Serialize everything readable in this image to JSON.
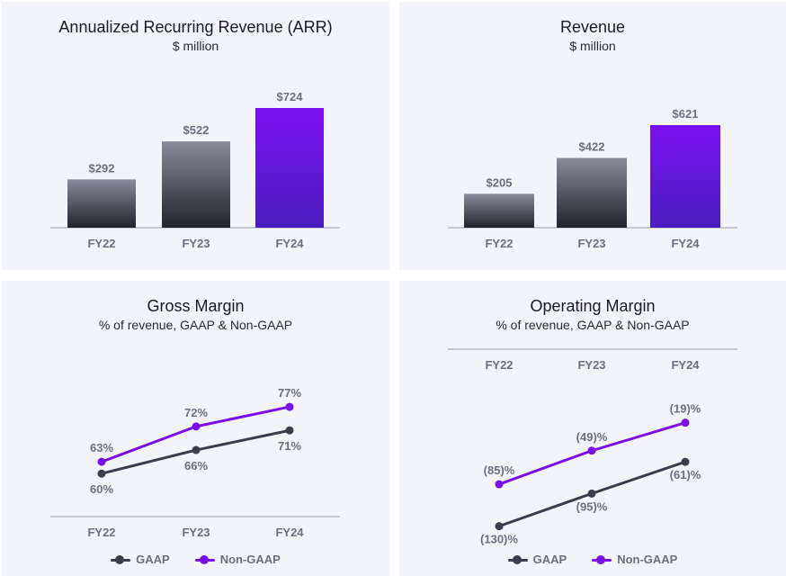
{
  "colors": {
    "gaap": "#3c3c4c",
    "non_gaap": "#7a10e8",
    "bar_dark_top": "#8a8a9a",
    "bar_dark_bottom": "#23232e",
    "bar_purple_top": "#7a10f0",
    "bar_purple_bottom": "#4a1ec0",
    "panel_bg": "#f3f4f9"
  },
  "arr": {
    "title": "Annualized Recurring Revenue (ARR)",
    "subtitle": "$ million"
  },
  "revenue": {
    "title": "Revenue",
    "subtitle": "$ million"
  },
  "gross_margin": {
    "title": "Gross Margin",
    "subtitle": "% of revenue, GAAP & Non-GAAP",
    "legend": {
      "gaap": "GAAP",
      "non_gaap": "Non-GAAP"
    }
  },
  "operating_margin": {
    "title": "Operating Margin",
    "subtitle": "% of revenue, GAAP & Non-GAAP",
    "legend": {
      "gaap": "GAAP",
      "non_gaap": "Non-GAAP"
    }
  },
  "chart_data": [
    {
      "type": "bar",
      "title": "Annualized Recurring Revenue (ARR)",
      "subtitle": "$ million",
      "categories": [
        "FY22",
        "FY23",
        "FY24"
      ],
      "values": [
        292,
        522,
        724
      ],
      "labels": [
        "$292",
        "$522",
        "$724"
      ],
      "highlight_index": 2
    },
    {
      "type": "bar",
      "title": "Revenue",
      "subtitle": "$ million",
      "categories": [
        "FY22",
        "FY23",
        "FY24"
      ],
      "values": [
        205,
        422,
        621
      ],
      "labels": [
        "$205",
        "$422",
        "$621"
      ],
      "highlight_index": 2
    },
    {
      "type": "line",
      "title": "Gross Margin",
      "subtitle": "% of revenue, GAAP & Non-GAAP",
      "categories": [
        "FY22",
        "FY23",
        "FY24"
      ],
      "ylim": [
        55,
        80
      ],
      "series": [
        {
          "name": "GAAP",
          "values": [
            60,
            66,
            71
          ],
          "labels": [
            "60%",
            "66%",
            "71%"
          ]
        },
        {
          "name": "Non-GAAP",
          "values": [
            63,
            72,
            77
          ],
          "labels": [
            "63%",
            "72%",
            "77%"
          ]
        }
      ],
      "legend_position": "bottom"
    },
    {
      "type": "line",
      "title": "Operating Margin",
      "subtitle": "% of revenue, GAAP & Non-GAAP",
      "categories": [
        "FY22",
        "FY23",
        "FY24"
      ],
      "x_axis_position": "top",
      "ylim": [
        -140,
        0
      ],
      "series": [
        {
          "name": "GAAP",
          "values": [
            -130,
            -95,
            -61
          ],
          "labels": [
            "(130)%",
            "(95)%",
            "(61)%"
          ]
        },
        {
          "name": "Non-GAAP",
          "values": [
            -85,
            -49,
            -19
          ],
          "labels": [
            "(85)%",
            "(49)%",
            "(19)%"
          ]
        }
      ],
      "legend_position": "bottom"
    }
  ]
}
